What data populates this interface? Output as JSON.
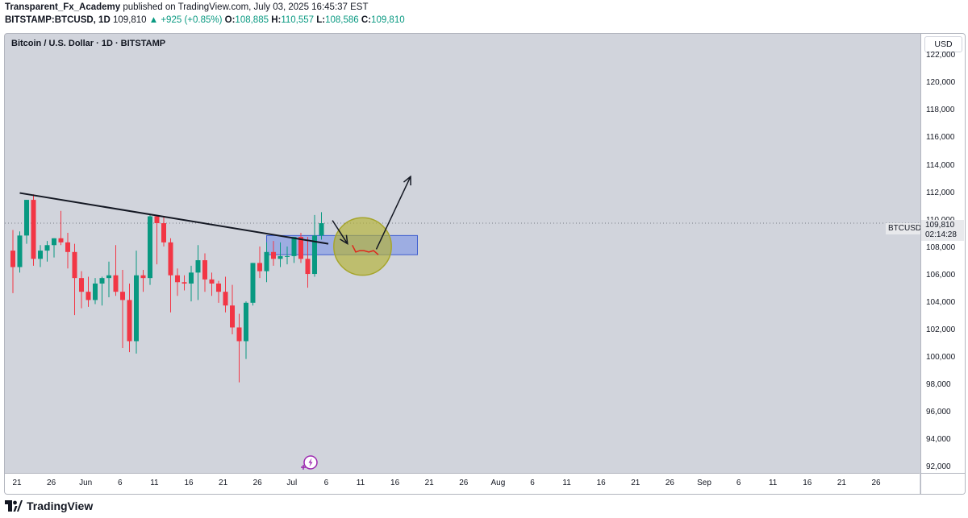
{
  "header": {
    "author": "Transparent_Fx_Academy",
    "published_text": "published on TradingView.com, July 03, 2025 16:45:37 EST",
    "symbol": "BITSTAMP:BTCUSD, 1D",
    "last": "109,810",
    "change": "+925 (+0.85%)",
    "open_label": "O:",
    "open": "108,885",
    "high_label": "H:",
    "high": "110,557",
    "low_label": "L:",
    "low": "108,586",
    "close_label": "C:",
    "close": "109,810"
  },
  "chart": {
    "title": "Bitcoin / U.S. Dollar · 1D · BITSTAMP",
    "currency_button": "USD",
    "price_ticks": [
      "122,000",
      "120,000",
      "118,000",
      "116,000",
      "114,000",
      "112,000",
      "110,000",
      "108,000",
      "106,000",
      "104,000",
      "102,000",
      "100,000",
      "98,000",
      "96,000",
      "94,000",
      "92,000"
    ],
    "time_ticks": [
      "21",
      "26",
      "Jun",
      "6",
      "11",
      "16",
      "21",
      "26",
      "Jul",
      "6",
      "11",
      "16",
      "21",
      "26",
      "Aug",
      "6",
      "11",
      "16",
      "21",
      "26",
      "Sep",
      "6",
      "11",
      "16",
      "21",
      "26"
    ],
    "last_price_label": "109,810",
    "countdown": "02:14:28",
    "symbol_tag": "BTCUSD",
    "colors": {
      "up": "#089981",
      "down": "#f23645",
      "background": "#d1d4dc",
      "zone": "#7a93e6",
      "circle": "#b3b233"
    }
  },
  "chart_data": {
    "type": "candlestick",
    "ylim": [
      91600,
      123600
    ],
    "x_labels": [
      "21",
      "26",
      "Jun",
      "6",
      "11",
      "16",
      "21",
      "26",
      "Jul",
      "6",
      "11",
      "16",
      "21",
      "26",
      "Aug",
      "6",
      "11",
      "16",
      "21",
      "26",
      "Sep",
      "6",
      "11",
      "16",
      "21",
      "26"
    ],
    "candles": [
      [
        107800,
        109300,
        104700,
        106600
      ],
      [
        106600,
        109200,
        106200,
        108900
      ],
      [
        108900,
        111500,
        108300,
        111500
      ],
      [
        111500,
        111900,
        106700,
        107200
      ],
      [
        107200,
        108200,
        106600,
        107800
      ],
      [
        107800,
        108500,
        107000,
        108200
      ],
      [
        108200,
        108700,
        107300,
        108700
      ],
      [
        108700,
        110700,
        108200,
        108400
      ],
      [
        108400,
        109100,
        106500,
        107700
      ],
      [
        107700,
        108300,
        103100,
        105800
      ],
      [
        105800,
        106300,
        103600,
        104800
      ],
      [
        104800,
        105900,
        103700,
        104200
      ],
      [
        104200,
        105800,
        103900,
        105400
      ],
      [
        105400,
        105900,
        103800,
        105800
      ],
      [
        105800,
        107000,
        104400,
        106000
      ],
      [
        106000,
        108200,
        104500,
        104800
      ],
      [
        104800,
        106400,
        100700,
        104200
      ],
      [
        104200,
        105400,
        100400,
        101200
      ],
      [
        101200,
        107800,
        100300,
        106000
      ],
      [
        106000,
        106400,
        104800,
        105800
      ],
      [
        105800,
        110400,
        105300,
        110300
      ],
      [
        110300,
        110400,
        106800,
        109800
      ],
      [
        109800,
        110300,
        108100,
        108400
      ],
      [
        108400,
        108700,
        103300,
        106000
      ],
      [
        106000,
        106500,
        104500,
        105500
      ],
      [
        105500,
        106000,
        104900,
        105400
      ],
      [
        105400,
        106700,
        104100,
        106200
      ],
      [
        106200,
        108200,
        104200,
        107100
      ],
      [
        107100,
        107600,
        104800,
        105700
      ],
      [
        105700,
        106200,
        104500,
        105400
      ],
      [
        105400,
        105600,
        104000,
        104800
      ],
      [
        104800,
        105900,
        103300,
        103800
      ],
      [
        103800,
        105300,
        101700,
        102200
      ],
      [
        102200,
        103200,
        98200,
        101200
      ],
      [
        101200,
        104100,
        99900,
        104000
      ],
      [
        104000,
        106900,
        103800,
        106900
      ],
      [
        106900,
        108100,
        105800,
        106300
      ],
      [
        106300,
        108400,
        105500,
        107700
      ],
      [
        107700,
        108500,
        106700,
        107200
      ],
      [
        107200,
        108400,
        106600,
        107400
      ],
      [
        107400,
        108100,
        106800,
        107400
      ],
      [
        107400,
        108800,
        106900,
        108800
      ],
      [
        108800,
        109100,
        106900,
        107200
      ],
      [
        107200,
        108800,
        105100,
        106100
      ],
      [
        106100,
        110400,
        105900,
        108900
      ],
      [
        108900,
        110600,
        108600,
        109800
      ]
    ],
    "trendline": {
      "from": [
        1,
        112000
      ],
      "to": [
        46,
        108300
      ]
    },
    "demand_zone": {
      "from": 37,
      "to": 59,
      "top": 108900,
      "bottom": 107500
    },
    "circle": {
      "center": [
        51,
        108100
      ],
      "radius_days": 4.2
    },
    "arrow_down": [
      [
        46.6,
        110000
      ],
      [
        48.8,
        108300
      ]
    ],
    "arrow_up": [
      [
        53,
        107900
      ],
      [
        58,
        113200
      ]
    ],
    "red_path": [
      [
        49.5,
        108200
      ],
      [
        50,
        107700
      ],
      [
        50.6,
        107800
      ],
      [
        51.2,
        107800
      ],
      [
        51.9,
        107700
      ],
      [
        52.6,
        107800
      ],
      [
        53.3,
        107500
      ]
    ]
  },
  "footer": {
    "brand": "TradingView"
  }
}
